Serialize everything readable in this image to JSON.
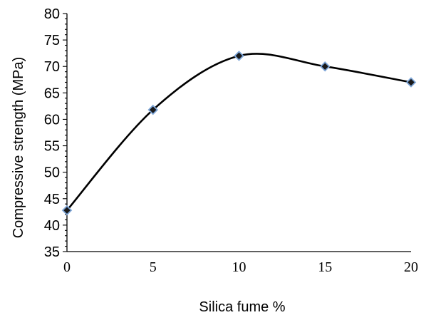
{
  "chart_data": {
    "type": "scatter",
    "xlabel": "Silica fume %",
    "ylabel": "Compressive strength (MPa)",
    "xlim": [
      0,
      20
    ],
    "ylim": [
      35,
      80
    ],
    "xticks": [
      "0",
      "5",
      "10",
      "15",
      "20"
    ],
    "yticks": [
      "35",
      "40",
      "45",
      "50",
      "55",
      "60",
      "65",
      "70",
      "75",
      "80"
    ],
    "grid": false,
    "smoothed_line": true,
    "marker": "diamond",
    "marker_fill": "#1a1a1a",
    "marker_edge": "#7ea6d8",
    "line_color": "#000000",
    "series": [
      {
        "x": [
          0,
          5,
          10,
          15,
          20
        ],
        "values": [
          42.8,
          61.8,
          72,
          70,
          67
        ]
      }
    ]
  }
}
